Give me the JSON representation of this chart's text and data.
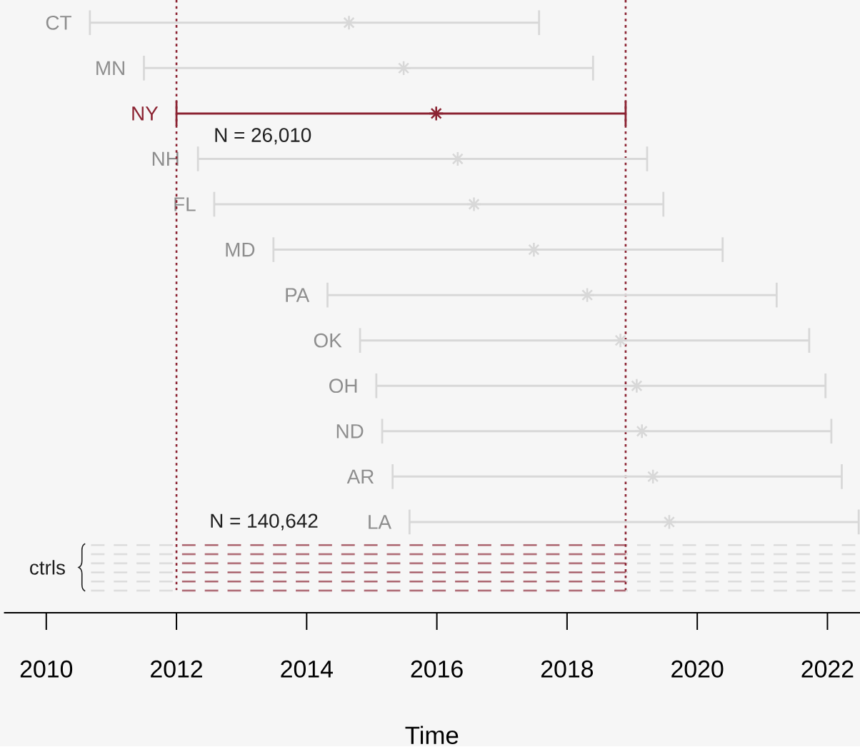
{
  "chart_data": {
    "type": "bar",
    "orientation": "horizontal",
    "categories": [
      "CT",
      "MN",
      "NY",
      "NH",
      "FL",
      "MD",
      "PA",
      "OK",
      "OH",
      "ND",
      "AR",
      "LA",
      "ctrls"
    ],
    "series": [
      {
        "line_style": "dashed",
        "color": "#d8d8d8",
        "values": [
          null,
          null,
          null,
          null,
          null,
          null,
          null,
          null,
          null,
          null,
          null,
          null,
          1.37
        ],
        "base": [
          null,
          null,
          null,
          null,
          null,
          null,
          null,
          null,
          null,
          null,
          null,
          null,
          2010.63
        ]
      },
      {
        "line_style": "dashed",
        "color": "#a0505c",
        "values": [
          null,
          null,
          null,
          null,
          null,
          null,
          null,
          null,
          null,
          null,
          null,
          null,
          6.9
        ],
        "base": [
          null,
          null,
          null,
          null,
          null,
          null,
          null,
          null,
          null,
          null,
          null,
          null,
          2012.0
        ]
      },
      {
        "line_style": "dashed",
        "color": "#d8d8d8",
        "values": [
          null,
          null,
          null,
          null,
          null,
          null,
          null,
          null,
          null,
          null,
          null,
          null,
          3.6
        ],
        "base": [
          null,
          null,
          null,
          null,
          null,
          null,
          null,
          null,
          null,
          null,
          null,
          null,
          2018.9
        ]
      },
      {
        "type": "scatter",
        "marker": "star",
        "values": [
          2014.65,
          2015.49,
          2015.99,
          2016.32,
          2016.57,
          2017.49,
          2018.31,
          2018.82,
          2019.07,
          2019.15,
          2019.32,
          2019.57,
          null
        ],
        "errors": [
          [
            2010.67,
            2017.57
          ],
          [
            2011.5,
            2018.4
          ],
          [
            2012.0,
            2018.9
          ],
          [
            2012.33,
            2019.23
          ],
          [
            2012.58,
            2019.48
          ],
          [
            2013.49,
            2020.39
          ],
          [
            2014.32,
            2021.22
          ],
          [
            2014.82,
            2021.72
          ],
          [
            2015.07,
            2021.97
          ],
          [
            2015.16,
            2022.06
          ],
          [
            2015.32,
            2022.22
          ],
          [
            2015.58,
            2022.48
          ],
          null
        ],
        "colors": [
          "#d8d8d8",
          "#d8d8d8",
          "#8b2332",
          "#d8d8d8",
          "#d8d8d8",
          "#d8d8d8",
          "#d8d8d8",
          "#d8d8d8",
          "#d8d8d8",
          "#d8d8d8",
          "#d8d8d8",
          "#d8d8d8",
          null
        ]
      }
    ],
    "xlim": [
      2009.35,
      2022.5
    ],
    "xticks": [
      2010,
      2012,
      2014,
      2016,
      2018,
      2020,
      2022
    ],
    "xlabel": "Time",
    "ref_lines": [
      {
        "axis": "x",
        "value": 2012.0,
        "color": "#8b2332",
        "line_style": "dotted"
      },
      {
        "axis": "x",
        "value": 2018.9,
        "color": "#8b2332",
        "line_style": "dotted"
      }
    ],
    "annotations": [
      "N = 26,010",
      "N = 140,642"
    ]
  }
}
